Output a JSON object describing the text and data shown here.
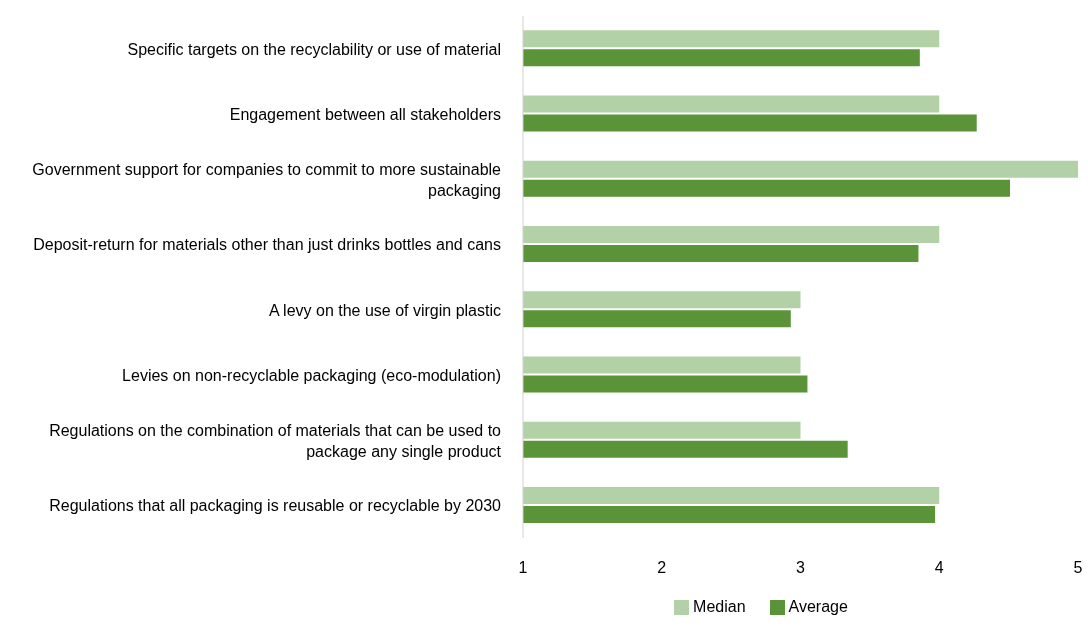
{
  "chart_data": {
    "type": "bar",
    "orientation": "horizontal",
    "categories": [
      "Specific targets on the recyclability or use of material",
      "Engagement between all stakeholders",
      "Government support for companies to commit to more sustainable packaging",
      "Deposit-return for materials other than just drinks bottles and cans",
      "A levy on the use of virgin plastic",
      "Levies on non-recyclable packaging (eco-modulation)",
      "Regulations on the combination of materials that can be used to package any single product",
      "Regulations that all packaging is reusable or recyclable by 2030"
    ],
    "series": [
      {
        "name": "Median",
        "color": "#b3d1a6",
        "values": [
          4,
          4,
          5,
          4,
          3,
          3,
          3,
          4
        ]
      },
      {
        "name": "Average",
        "color": "#5a9338",
        "values": [
          3.86,
          4.27,
          4.51,
          3.85,
          2.93,
          3.05,
          3.34,
          3.97
        ]
      }
    ],
    "xlim": [
      1,
      5
    ],
    "xticks": [
      1,
      2,
      3,
      4,
      5
    ],
    "grid": false,
    "legend": "bottom"
  }
}
